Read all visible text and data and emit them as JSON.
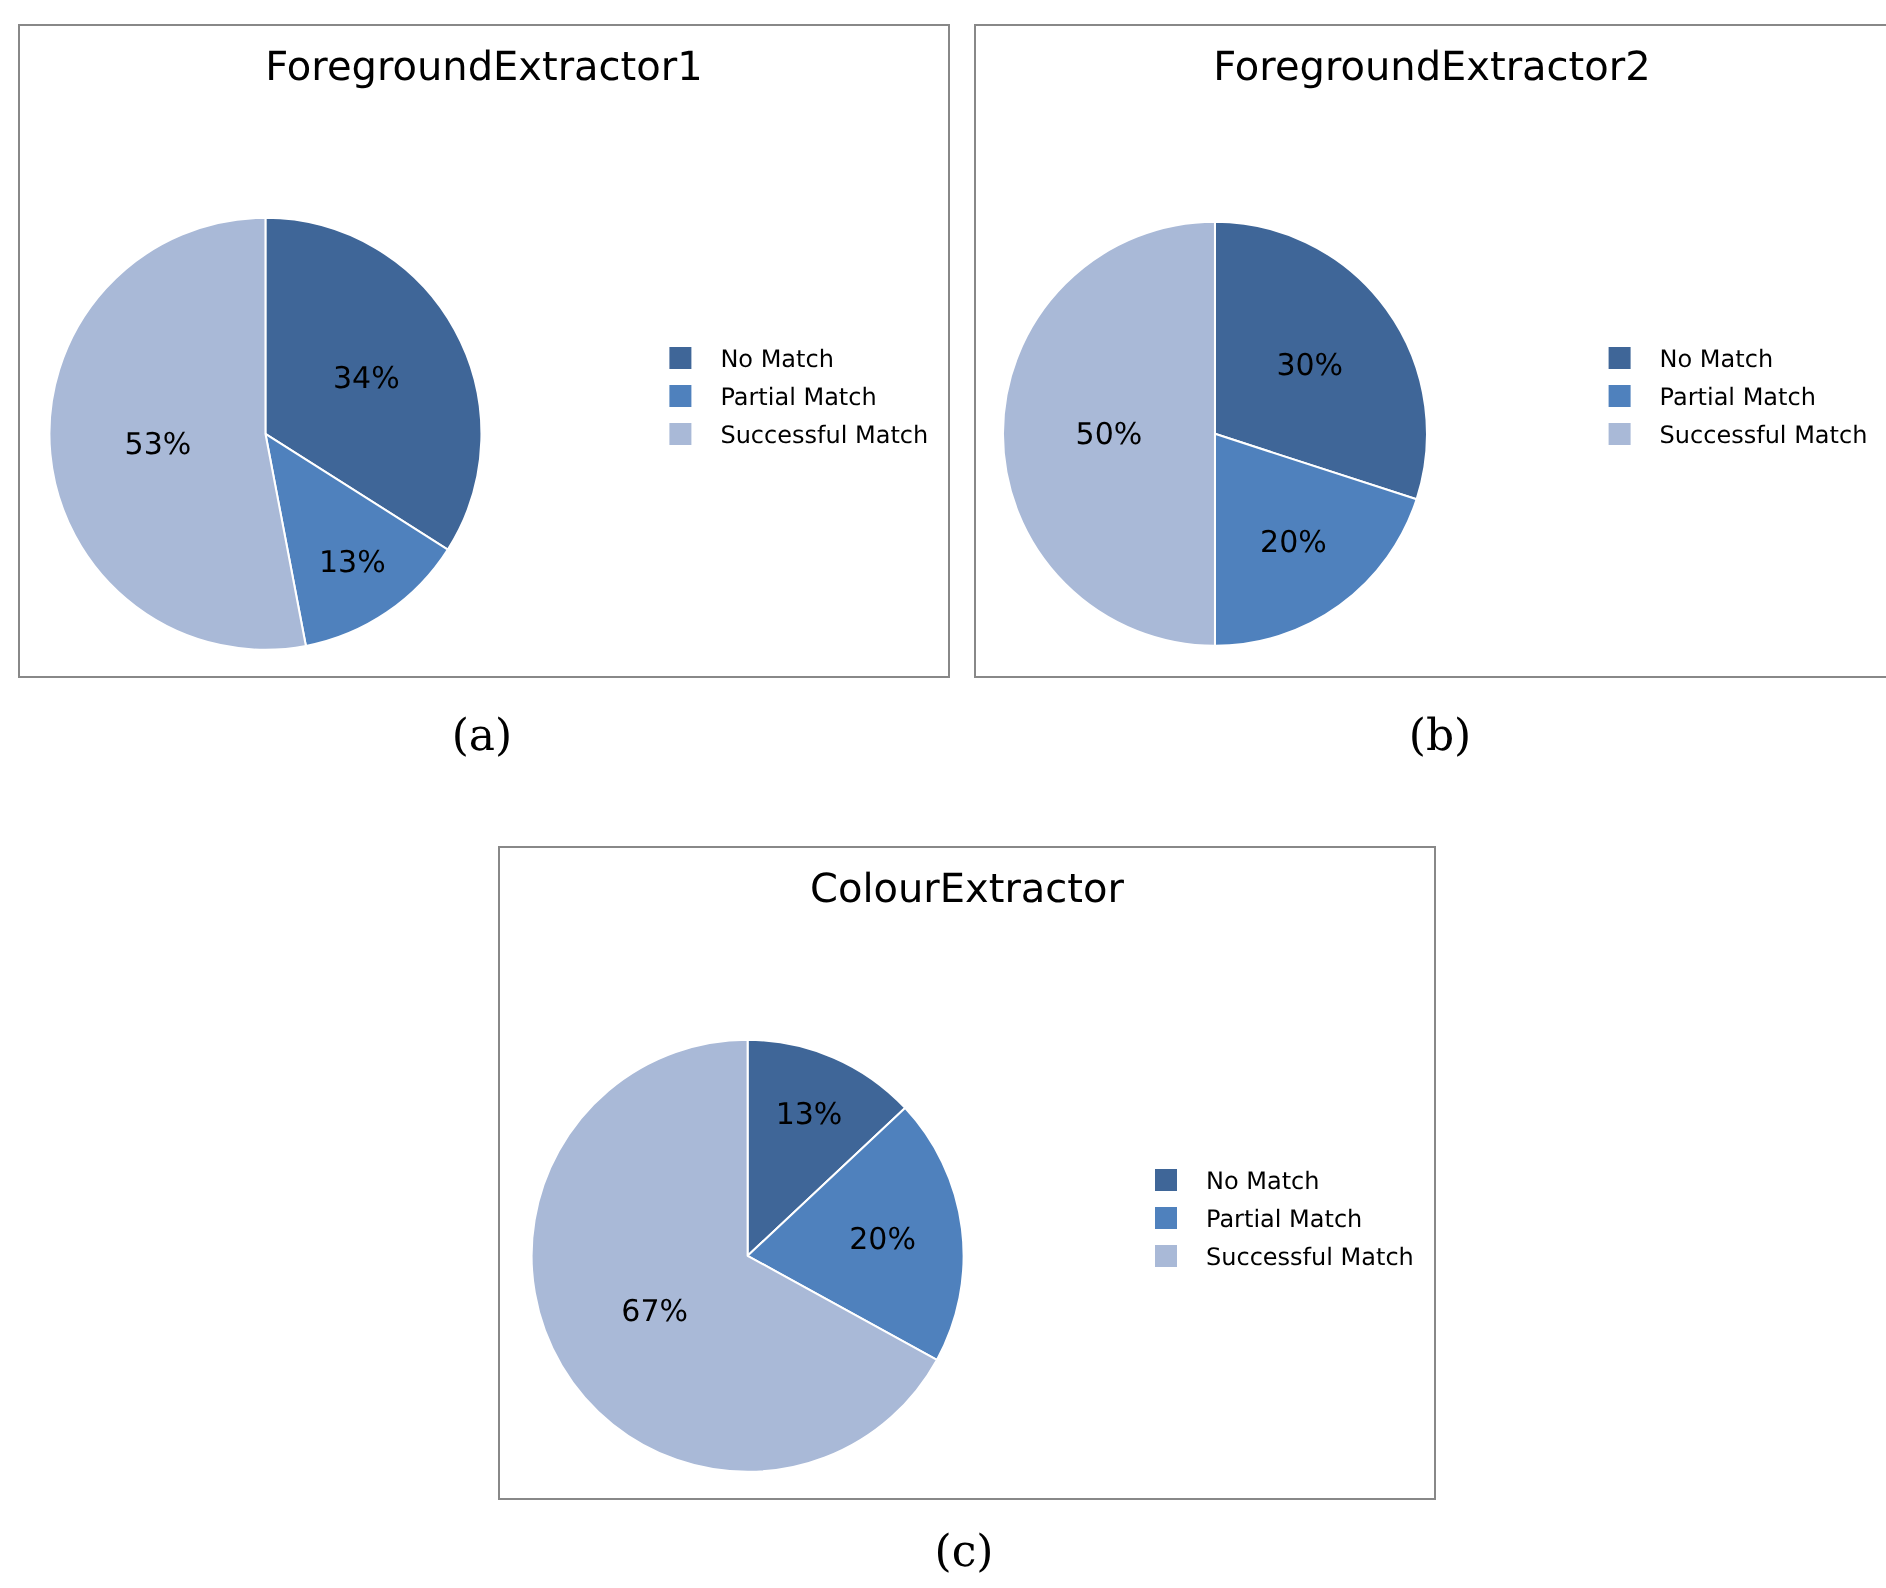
{
  "chart_data": [
    {
      "type": "pie",
      "title": "ForegroundExtractor1",
      "categories": [
        "No Match",
        "Partial Match",
        "Successful Match"
      ],
      "values": [
        34,
        13,
        53
      ],
      "value_labels": [
        "34%",
        "13%",
        "53%"
      ],
      "colors": [
        "#3f6698",
        "#4f81bd",
        "#a9b9d7"
      ],
      "legend": "right",
      "annotations": [
        "(a)"
      ]
    },
    {
      "type": "pie",
      "title": "ForegroundExtractor2",
      "categories": [
        "No Match",
        "Partial Match",
        "Successful Match"
      ],
      "values": [
        30,
        20,
        50
      ],
      "value_labels": [
        "30%",
        "20%",
        "50%"
      ],
      "colors": [
        "#3f6698",
        "#4f81bd",
        "#a9b9d7"
      ],
      "legend": "right",
      "annotations": [
        "(b)"
      ]
    },
    {
      "type": "pie",
      "title": "ColourExtractor",
      "categories": [
        "No Match",
        "Partial Match",
        "Successful Match"
      ],
      "values": [
        13,
        20,
        67
      ],
      "value_labels": [
        "13%",
        "20%",
        "67%"
      ],
      "colors": [
        "#3f6698",
        "#4f81bd",
        "#a9b9d7"
      ],
      "legend": "right",
      "annotations": [
        "(c)"
      ]
    }
  ]
}
